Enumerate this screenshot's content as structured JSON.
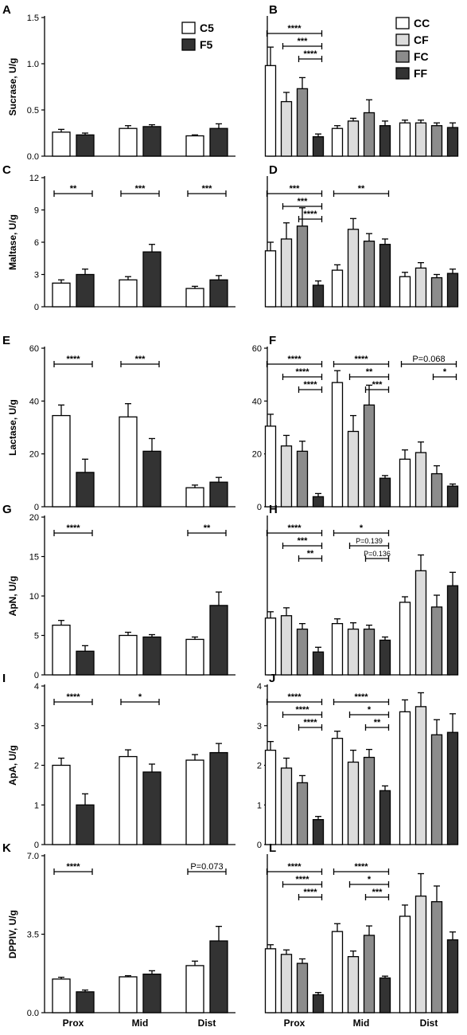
{
  "figure": {
    "x_categories": [
      "Prox",
      "Mid",
      "Dist"
    ]
  },
  "chart_data": [
    {
      "id": "A",
      "type": "bar",
      "ylabel": "Sucrase, U/g",
      "ylim": [
        0,
        1.5
      ],
      "yticks": [
        "0.0",
        "0.5",
        "1.0",
        "1.5"
      ],
      "categories": [
        "Prox",
        "Mid",
        "Dist"
      ],
      "series": [
        {
          "name": "C5",
          "values": [
            0.26,
            0.3,
            0.22
          ],
          "err": [
            0.03,
            0.03,
            0.01
          ]
        },
        {
          "name": "F5",
          "values": [
            0.23,
            0.32,
            0.3
          ],
          "err": [
            0.02,
            0.02,
            0.05
          ]
        }
      ],
      "legend": {
        "position": "top-right",
        "entries": [
          "C5",
          "F5"
        ]
      },
      "annotations": []
    },
    {
      "id": "B",
      "type": "bar",
      "ylabel": "",
      "ylim": [
        0,
        1.5
      ],
      "yticks": [],
      "categories": [
        "Prox",
        "Mid",
        "Dist"
      ],
      "series": [
        {
          "name": "CC",
          "values": [
            0.98,
            0.3,
            0.36
          ],
          "err": [
            0.2,
            0.03,
            0.03
          ]
        },
        {
          "name": "CF",
          "values": [
            0.59,
            0.38,
            0.36
          ],
          "err": [
            0.1,
            0.03,
            0.03
          ]
        },
        {
          "name": "FC",
          "values": [
            0.73,
            0.47,
            0.33
          ],
          "err": [
            0.12,
            0.14,
            0.03
          ]
        },
        {
          "name": "FF",
          "values": [
            0.21,
            0.33,
            0.31
          ],
          "err": [
            0.03,
            0.05,
            0.05
          ]
        }
      ],
      "legend": {
        "position": "top-right",
        "entries": [
          "CC",
          "CF",
          "FC",
          "FF"
        ]
      },
      "annotations": [
        {
          "group": 0,
          "from": 0,
          "to": 3,
          "level": 0,
          "text": "****"
        },
        {
          "group": 0,
          "from": 1,
          "to": 3,
          "level": 1,
          "text": "***"
        },
        {
          "group": 0,
          "from": 2,
          "to": 3,
          "level": 2,
          "text": "****"
        }
      ]
    },
    {
      "id": "C",
      "type": "bar",
      "ylabel": "Maltase, U/g",
      "ylim": [
        0,
        12
      ],
      "yticks": [
        "0",
        "3",
        "6",
        "9",
        "12"
      ],
      "categories": [
        "Prox",
        "Mid",
        "Dist"
      ],
      "series": [
        {
          "name": "C5",
          "values": [
            2.2,
            2.5,
            1.7
          ],
          "err": [
            0.3,
            0.3,
            0.2
          ]
        },
        {
          "name": "F5",
          "values": [
            3.0,
            5.1,
            2.5
          ],
          "err": [
            0.5,
            0.7,
            0.4
          ]
        }
      ],
      "legend": null,
      "annotations": [
        {
          "group": 0,
          "from": 0,
          "to": 1,
          "level": 0,
          "text": "**"
        },
        {
          "group": 1,
          "from": 0,
          "to": 1,
          "level": 0,
          "text": "***"
        },
        {
          "group": 2,
          "from": 0,
          "to": 1,
          "level": 0,
          "text": "***"
        }
      ]
    },
    {
      "id": "D",
      "type": "bar",
      "ylabel": "",
      "ylim": [
        0,
        12
      ],
      "yticks": [],
      "categories": [
        "Prox",
        "Mid",
        "Dist"
      ],
      "series": [
        {
          "name": "CC",
          "values": [
            5.2,
            3.4,
            2.8
          ],
          "err": [
            0.8,
            0.5,
            0.4
          ]
        },
        {
          "name": "CF",
          "values": [
            6.3,
            7.2,
            3.6
          ],
          "err": [
            1.5,
            1.0,
            0.5
          ]
        },
        {
          "name": "FC",
          "values": [
            7.5,
            6.1,
            2.7
          ],
          "err": [
            1.7,
            0.7,
            0.3
          ]
        },
        {
          "name": "FF",
          "values": [
            2.0,
            5.8,
            3.1
          ],
          "err": [
            0.4,
            0.5,
            0.4
          ]
        }
      ],
      "legend": null,
      "annotations": [
        {
          "group": 0,
          "from": 0,
          "to": 3,
          "level": 0,
          "text": "***"
        },
        {
          "group": 0,
          "from": 1,
          "to": 3,
          "level": 1,
          "text": "***"
        },
        {
          "group": 0,
          "from": 2,
          "to": 3,
          "level": 2,
          "text": "****"
        },
        {
          "group": 1,
          "from": 0,
          "to": 3,
          "level": 0,
          "text": "**"
        }
      ]
    },
    {
      "id": "E",
      "type": "bar",
      "ylabel": "Lactase, U/g",
      "ylim": [
        0,
        60
      ],
      "yticks": [
        "0",
        "20",
        "40",
        "60"
      ],
      "categories": [
        "Prox",
        "Mid",
        "Dist"
      ],
      "series": [
        {
          "name": "C5",
          "values": [
            34.5,
            34.0,
            7.2
          ],
          "err": [
            4.0,
            5.0,
            1.0
          ]
        },
        {
          "name": "F5",
          "values": [
            13.0,
            21.0,
            9.3
          ],
          "err": [
            5.0,
            4.8,
            1.8
          ]
        }
      ],
      "legend": null,
      "annotations": [
        {
          "group": 0,
          "from": 0,
          "to": 1,
          "level": 0,
          "text": "****"
        },
        {
          "group": 1,
          "from": 0,
          "to": 1,
          "level": 0,
          "text": "***"
        }
      ]
    },
    {
      "id": "F",
      "type": "bar",
      "ylabel": "",
      "ylim": [
        0,
        60
      ],
      "yticks": [
        "0",
        "20",
        "40",
        "60"
      ],
      "categories": [
        "Prox",
        "Mid",
        "Dist"
      ],
      "series": [
        {
          "name": "CC",
          "values": [
            30.5,
            47.0,
            18.0
          ],
          "err": [
            4.5,
            4.5,
            3.5
          ]
        },
        {
          "name": "CF",
          "values": [
            23.0,
            28.5,
            20.5
          ],
          "err": [
            4.0,
            6.0,
            4.0
          ]
        },
        {
          "name": "FC",
          "values": [
            21.0,
            38.5,
            12.5
          ],
          "err": [
            3.8,
            7.5,
            3.0
          ]
        },
        {
          "name": "FF",
          "values": [
            3.8,
            10.8,
            7.8
          ],
          "err": [
            1.2,
            1.0,
            0.8
          ]
        }
      ],
      "legend": null,
      "annotations": [
        {
          "group": 0,
          "from": 0,
          "to": 3,
          "level": 0,
          "text": "****"
        },
        {
          "group": 0,
          "from": 1,
          "to": 3,
          "level": 1,
          "text": "****"
        },
        {
          "group": 0,
          "from": 2,
          "to": 3,
          "level": 2,
          "text": "****"
        },
        {
          "group": 1,
          "from": 0,
          "to": 3,
          "level": 0,
          "text": "****"
        },
        {
          "group": 1,
          "from": 1,
          "to": 3,
          "level": 1,
          "text": "**"
        },
        {
          "group": 1,
          "from": 2,
          "to": 3,
          "level": 2,
          "text": "***"
        },
        {
          "group": 2,
          "from": 0,
          "to": 3,
          "level": 0,
          "text": "P=0.068"
        },
        {
          "group": 2,
          "from": 2,
          "to": 3,
          "level": 1,
          "text": "*"
        }
      ]
    },
    {
      "id": "G",
      "type": "bar",
      "ylabel": "ApN, U/g",
      "ylim": [
        0,
        20
      ],
      "yticks": [
        "0",
        "5",
        "10",
        "15",
        "20"
      ],
      "categories": [
        "Prox",
        "Mid",
        "Dist"
      ],
      "series": [
        {
          "name": "C5",
          "values": [
            6.3,
            5.0,
            4.5
          ],
          "err": [
            0.6,
            0.4,
            0.3
          ]
        },
        {
          "name": "F5",
          "values": [
            3.0,
            4.8,
            8.8
          ],
          "err": [
            0.7,
            0.3,
            1.7
          ]
        }
      ],
      "legend": null,
      "annotations": [
        {
          "group": 0,
          "from": 0,
          "to": 1,
          "level": 0,
          "text": "****"
        },
        {
          "group": 2,
          "from": 0,
          "to": 1,
          "level": 0,
          "text": "**"
        }
      ]
    },
    {
      "id": "H",
      "type": "bar",
      "ylabel": "",
      "ylim": [
        0,
        20
      ],
      "yticks": [],
      "categories": [
        "Prox",
        "Mid",
        "Dist"
      ],
      "series": [
        {
          "name": "CC",
          "values": [
            7.2,
            6.5,
            9.2
          ],
          "err": [
            0.8,
            0.6,
            0.7
          ]
        },
        {
          "name": "CF",
          "values": [
            7.5,
            5.8,
            13.2
          ],
          "err": [
            1.0,
            0.8,
            2.0
          ]
        },
        {
          "name": "FC",
          "values": [
            5.8,
            5.8,
            8.6
          ],
          "err": [
            0.7,
            0.5,
            1.5
          ]
        },
        {
          "name": "FF",
          "values": [
            2.9,
            4.4,
            11.3
          ],
          "err": [
            0.6,
            0.4,
            1.7
          ]
        }
      ],
      "legend": null,
      "annotations": [
        {
          "group": 0,
          "from": 0,
          "to": 3,
          "level": 0,
          "text": "****"
        },
        {
          "group": 0,
          "from": 1,
          "to": 3,
          "level": 1,
          "text": "***"
        },
        {
          "group": 0,
          "from": 2,
          "to": 3,
          "level": 2,
          "text": "**"
        },
        {
          "group": 1,
          "from": 0,
          "to": 3,
          "level": 0,
          "text": "*"
        },
        {
          "group": 1,
          "from": 1,
          "to": 3,
          "level": 1,
          "text": "P=0.139"
        },
        {
          "group": 1,
          "from": 2,
          "to": 3,
          "level": 2,
          "text": "P=0.136"
        }
      ]
    },
    {
      "id": "I",
      "type": "bar",
      "ylabel": "ApA, U/g",
      "ylim": [
        0,
        4
      ],
      "yticks": [
        "0",
        "1",
        "2",
        "3",
        "4"
      ],
      "categories": [
        "Prox",
        "Mid",
        "Dist"
      ],
      "series": [
        {
          "name": "C5",
          "values": [
            2.0,
            2.22,
            2.13
          ],
          "err": [
            0.18,
            0.17,
            0.14
          ]
        },
        {
          "name": "F5",
          "values": [
            1.0,
            1.83,
            2.32
          ],
          "err": [
            0.28,
            0.2,
            0.23
          ]
        }
      ],
      "legend": null,
      "annotations": [
        {
          "group": 0,
          "from": 0,
          "to": 1,
          "level": 0,
          "text": "****"
        },
        {
          "group": 1,
          "from": 0,
          "to": 1,
          "level": 0,
          "text": "*"
        }
      ]
    },
    {
      "id": "J",
      "type": "bar",
      "ylabel": "",
      "ylim": [
        0,
        4
      ],
      "yticks": [
        "0",
        "1",
        "2",
        "3",
        "4"
      ],
      "categories": [
        "Prox",
        "Mid",
        "Dist"
      ],
      "series": [
        {
          "name": "CC",
          "values": [
            2.38,
            2.68,
            3.35
          ],
          "err": [
            0.22,
            0.18,
            0.3
          ]
        },
        {
          "name": "CF",
          "values": [
            1.93,
            2.08,
            3.48
          ],
          "err": [
            0.25,
            0.3,
            0.35
          ]
        },
        {
          "name": "FC",
          "values": [
            1.56,
            2.2,
            2.77
          ],
          "err": [
            0.18,
            0.2,
            0.38
          ]
        },
        {
          "name": "FF",
          "values": [
            0.63,
            1.36,
            2.83
          ],
          "err": [
            0.08,
            0.12,
            0.47
          ]
        }
      ],
      "legend": null,
      "annotations": [
        {
          "group": 0,
          "from": 0,
          "to": 3,
          "level": 0,
          "text": "****"
        },
        {
          "group": 0,
          "from": 1,
          "to": 3,
          "level": 1,
          "text": "****"
        },
        {
          "group": 0,
          "from": 2,
          "to": 3,
          "level": 2,
          "text": "****"
        },
        {
          "group": 1,
          "from": 0,
          "to": 3,
          "level": 0,
          "text": "****"
        },
        {
          "group": 1,
          "from": 1,
          "to": 3,
          "level": 1,
          "text": "*"
        },
        {
          "group": 1,
          "from": 2,
          "to": 3,
          "level": 2,
          "text": "**"
        }
      ]
    },
    {
      "id": "K",
      "type": "bar",
      "ylabel": "DPPIV, U/g",
      "ylim": [
        0,
        7
      ],
      "yticks": [
        "0.0",
        "3.5",
        "7.0"
      ],
      "categories": [
        "Prox",
        "Mid",
        "Dist"
      ],
      "series": [
        {
          "name": "C5",
          "values": [
            1.5,
            1.6,
            2.1
          ],
          "err": [
            0.08,
            0.05,
            0.2
          ]
        },
        {
          "name": "F5",
          "values": [
            0.93,
            1.72,
            3.2
          ],
          "err": [
            0.08,
            0.15,
            0.65
          ]
        }
      ],
      "legend": null,
      "annotations": [
        {
          "group": 0,
          "from": 0,
          "to": 1,
          "level": 0,
          "text": "****"
        },
        {
          "group": 2,
          "from": 0,
          "to": 1,
          "level": 0,
          "text": "P=0.073"
        }
      ]
    },
    {
      "id": "L",
      "type": "bar",
      "ylabel": "",
      "ylim": [
        0,
        7
      ],
      "yticks": [],
      "categories": [
        "Prox",
        "Mid",
        "Dist"
      ],
      "series": [
        {
          "name": "CC",
          "values": [
            2.85,
            3.62,
            4.3
          ],
          "err": [
            0.18,
            0.35,
            0.5
          ]
        },
        {
          "name": "CF",
          "values": [
            2.6,
            2.5,
            5.2
          ],
          "err": [
            0.2,
            0.25,
            1.0
          ]
        },
        {
          "name": "FC",
          "values": [
            2.2,
            3.45,
            4.95
          ],
          "err": [
            0.2,
            0.42,
            0.7
          ]
        },
        {
          "name": "FF",
          "values": [
            0.8,
            1.55,
            3.25
          ],
          "err": [
            0.1,
            0.08,
            0.35
          ]
        }
      ],
      "legend": null,
      "annotations": [
        {
          "group": 0,
          "from": 0,
          "to": 3,
          "level": 0,
          "text": "****"
        },
        {
          "group": 0,
          "from": 1,
          "to": 3,
          "level": 1,
          "text": "****"
        },
        {
          "group": 0,
          "from": 2,
          "to": 3,
          "level": 2,
          "text": "****"
        },
        {
          "group": 1,
          "from": 0,
          "to": 3,
          "level": 0,
          "text": "****"
        },
        {
          "group": 1,
          "from": 1,
          "to": 3,
          "level": 1,
          "text": "*"
        },
        {
          "group": 1,
          "from": 2,
          "to": 3,
          "level": 2,
          "text": "***"
        }
      ]
    }
  ],
  "colors": {
    "CC": "#ffffff",
    "CF": "#dcdcdc",
    "FC": "#8c8c8c",
    "FF": "#333333",
    "C5": "#ffffff",
    "F5": "#333333"
  }
}
